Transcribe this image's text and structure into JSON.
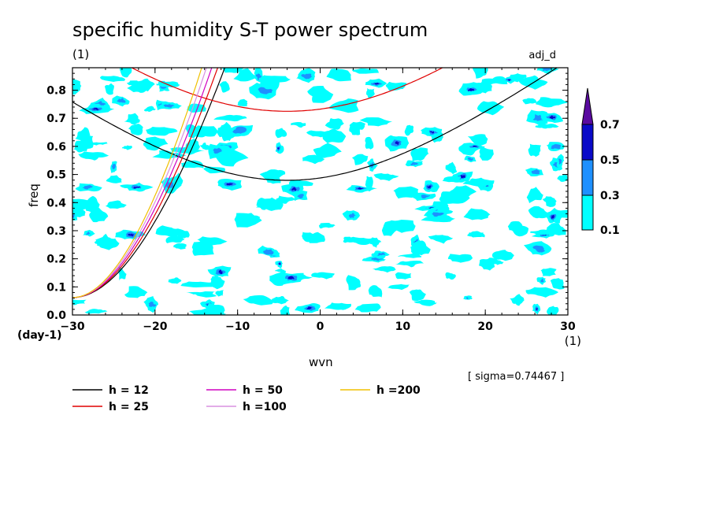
{
  "chart_data": {
    "type": "contour",
    "title": "specific humidity S-T power spectrum",
    "units_left": "(1)",
    "tag_right": "adj_d",
    "xlabel": "wvn",
    "ylabel": "freq",
    "x_unit": "(1)",
    "y_unit": "(day-1)",
    "xlim": [
      -30,
      30
    ],
    "ylim": [
      0,
      0.88
    ],
    "xticks": [
      -30,
      -20,
      -10,
      0,
      10,
      20,
      30
    ],
    "yticks": [
      0.0,
      0.1,
      0.2,
      0.3,
      0.4,
      0.5,
      0.6,
      0.7,
      0.8
    ],
    "sigma_note": "[ sigma=0.74467 ]",
    "colorbar": {
      "levels": [
        "0.1",
        "0.3",
        "0.5",
        "0.7"
      ],
      "colors": [
        "#00ffff",
        "#1e90ff",
        "#0a0ac8",
        "#5a0aa0"
      ]
    },
    "dispersion_curves": [
      {
        "label": "h = 12",
        "h": 12,
        "color": "#000000"
      },
      {
        "label": "h = 25",
        "h": 25,
        "color": "#e00000"
      },
      {
        "label": "h = 50",
        "h": 50,
        "color": "#d000c0"
      },
      {
        "label": "h =100",
        "h": 100,
        "color": "#d890e0"
      },
      {
        "label": "h =200",
        "h": 200,
        "color": "#f0c000"
      }
    ]
  }
}
